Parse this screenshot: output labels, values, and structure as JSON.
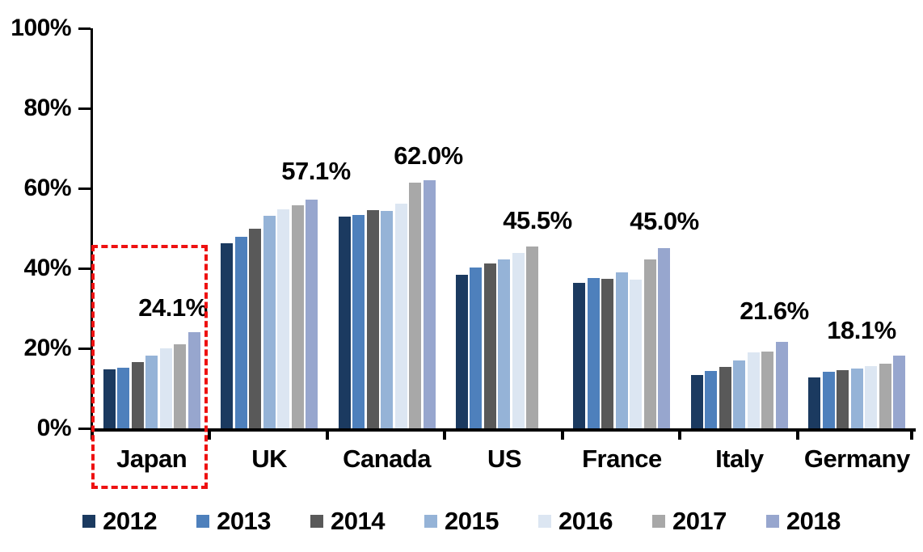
{
  "chart_data": {
    "type": "bar",
    "unit": "percent",
    "title": "",
    "xlabel": "",
    "ylabel": "",
    "ylim": [
      0,
      100
    ],
    "grid": false,
    "legend_position": "bottom",
    "y_axis_ticks": [
      "0%",
      "20%",
      "40%",
      "60%",
      "80%",
      "100%"
    ],
    "categories": [
      "Japan",
      "UK",
      "Canada",
      "US",
      "France",
      "Italy",
      "Germany"
    ],
    "series": [
      {
        "name": "2012",
        "color": "#1b3a60",
        "values": [
          14.8,
          46.3,
          53.0,
          38.4,
          36.4,
          13.4,
          12.7
        ]
      },
      {
        "name": "2013",
        "color": "#4e80bc",
        "values": [
          15.1,
          47.8,
          53.3,
          40.2,
          37.6,
          14.3,
          14.2
        ]
      },
      {
        "name": "2014",
        "color": "#595959",
        "values": [
          16.6,
          50.0,
          54.6,
          41.2,
          37.4,
          15.4,
          14.6
        ]
      },
      {
        "name": "2015",
        "color": "#95b3d7",
        "values": [
          18.1,
          53.2,
          54.4,
          42.2,
          39.0,
          16.9,
          15.0
        ]
      },
      {
        "name": "2016",
        "color": "#dce6f2",
        "values": [
          20.0,
          54.8,
          56.1,
          43.8,
          37.2,
          19.0,
          15.6
        ]
      },
      {
        "name": "2017",
        "color": "#a8a8a8",
        "values": [
          21.1,
          55.7,
          61.4,
          45.5,
          42.2,
          19.2,
          16.1
        ]
      },
      {
        "name": "2018",
        "color": "#97a6ce",
        "values": [
          24.1,
          57.1,
          62.0,
          null,
          45.0,
          21.6,
          18.1
        ]
      }
    ],
    "annotations": [
      {
        "category": "Japan",
        "label": "24.1%"
      },
      {
        "category": "UK",
        "label": "57.1%"
      },
      {
        "category": "Canada",
        "label": "62.0%"
      },
      {
        "category": "US",
        "label": "45.5%"
      },
      {
        "category": "France",
        "label": "45.0%"
      },
      {
        "category": "Italy",
        "label": "21.6%"
      },
      {
        "category": "Germany",
        "label": "18.1%"
      }
    ],
    "highlight": {
      "category": "Japan",
      "style": "red-dashed-box",
      "color": "#ee1111"
    }
  }
}
